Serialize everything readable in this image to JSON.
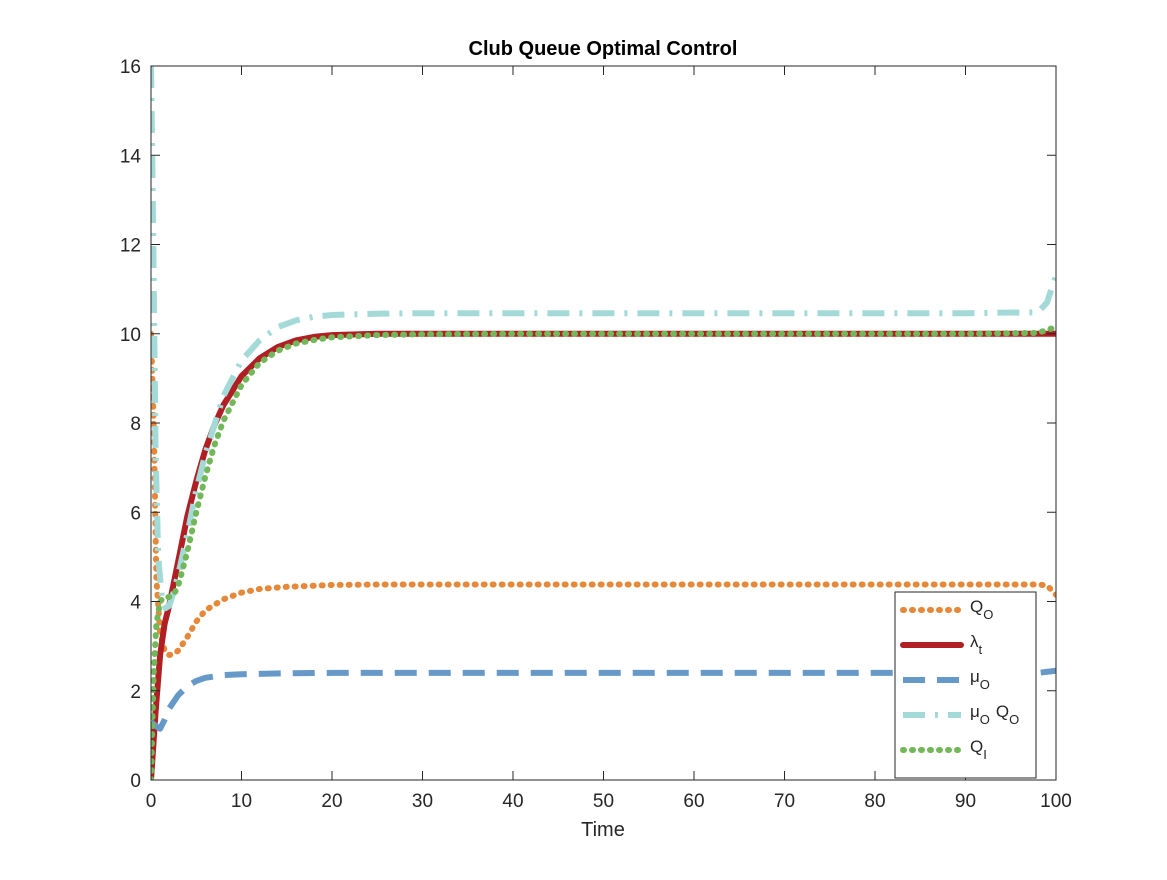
{
  "chart_data": {
    "type": "line",
    "title": "Club Queue Optimal Control",
    "xlabel": "Time",
    "ylabel": "",
    "xlim": [
      0,
      100
    ],
    "ylim": [
      0,
      16
    ],
    "xticks": [
      "0",
      "10",
      "20",
      "30",
      "40",
      "50",
      "60",
      "70",
      "80",
      "90",
      "100"
    ],
    "yticks": [
      "0",
      "2",
      "4",
      "6",
      "8",
      "10",
      "12",
      "14",
      "16"
    ],
    "grid": false,
    "legend_position": "bottom-right",
    "series": [
      {
        "name": "Q_O",
        "label_main": "Q",
        "label_sub": "O",
        "color": "#E6883A",
        "style": "dotted",
        "x": [
          0,
          0.3,
          0.6,
          1,
          1.5,
          2,
          2.5,
          3,
          4,
          5,
          6,
          8,
          10,
          12,
          15,
          20,
          25,
          30,
          40,
          50,
          60,
          70,
          80,
          90,
          98,
          99,
          100
        ],
        "y": [
          10,
          8,
          4.5,
          3.3,
          2.9,
          2.8,
          2.82,
          2.9,
          3.2,
          3.55,
          3.8,
          4.05,
          4.2,
          4.28,
          4.33,
          4.37,
          4.38,
          4.38,
          4.38,
          4.38,
          4.38,
          4.38,
          4.38,
          4.38,
          4.38,
          4.36,
          4.15
        ]
      },
      {
        "name": "λ_t",
        "label_main": "λ",
        "label_sub": "t",
        "color": "#B01F24",
        "style": "solid",
        "x": [
          0,
          0.5,
          1,
          1.5,
          2,
          3,
          4,
          5,
          6,
          7,
          8,
          10,
          12,
          14,
          16,
          18,
          20,
          25,
          30,
          40,
          50,
          60,
          70,
          80,
          90,
          100
        ],
        "y": [
          0,
          1.5,
          2.8,
          3.5,
          3.9,
          4.9,
          5.9,
          6.7,
          7.4,
          7.95,
          8.4,
          9.05,
          9.45,
          9.7,
          9.85,
          9.93,
          9.97,
          10,
          10,
          10,
          10,
          10,
          10,
          10,
          10,
          10
        ]
      },
      {
        "name": "μ_O",
        "label_main": "μ",
        "label_sub": "O",
        "color": "#6699C8",
        "style": "dashed",
        "x": [
          0,
          0.3,
          0.6,
          1,
          1.5,
          2,
          3,
          4,
          5,
          6,
          8,
          10,
          15,
          20,
          30,
          40,
          50,
          60,
          70,
          80,
          90,
          98,
          100
        ],
        "y": [
          1.3,
          1.25,
          1.2,
          1.15,
          1.35,
          1.6,
          1.9,
          2.1,
          2.22,
          2.29,
          2.35,
          2.37,
          2.39,
          2.4,
          2.4,
          2.4,
          2.4,
          2.4,
          2.4,
          2.4,
          2.4,
          2.4,
          2.45
        ]
      },
      {
        "name": "μ_O Q_O",
        "label_main": "μ",
        "label_sub": "O",
        "label_tail": "Q",
        "label_tail_sub": "O",
        "color": "#A3DAD8",
        "style": "dashdot",
        "x": [
          0,
          0.2,
          0.5,
          0.8,
          1.2,
          1.6,
          2,
          2.5,
          3,
          4,
          5,
          6,
          8,
          10,
          12,
          14,
          16,
          18,
          20,
          25,
          30,
          40,
          50,
          60,
          70,
          80,
          90,
          98,
          99,
          100
        ],
        "y": [
          16,
          13,
          7.5,
          5,
          4.1,
          3.85,
          3.9,
          4.2,
          4.6,
          5.5,
          6.5,
          7.3,
          8.6,
          9.4,
          9.85,
          10.15,
          10.3,
          10.38,
          10.42,
          10.45,
          10.46,
          10.46,
          10.46,
          10.46,
          10.46,
          10.46,
          10.46,
          10.48,
          10.7,
          11.3
        ]
      },
      {
        "name": "Q_I",
        "label_main": "Q",
        "label_sub": "I",
        "color": "#72B85A",
        "style": "dotted",
        "x": [
          0,
          0.3,
          0.6,
          1,
          1.5,
          2,
          2.5,
          3,
          4,
          5,
          6,
          7,
          8,
          10,
          12,
          14,
          16,
          18,
          20,
          25,
          30,
          40,
          50,
          60,
          70,
          80,
          90,
          98,
          100
        ],
        "y": [
          0,
          2.4,
          3.5,
          4.0,
          4.1,
          4.1,
          4.15,
          4.35,
          5.1,
          6.0,
          6.8,
          7.5,
          8.05,
          8.85,
          9.35,
          9.62,
          9.78,
          9.86,
          9.92,
          9.97,
          9.99,
          10,
          10,
          10,
          10,
          10,
          10,
          10.02,
          10.15
        ]
      }
    ]
  }
}
